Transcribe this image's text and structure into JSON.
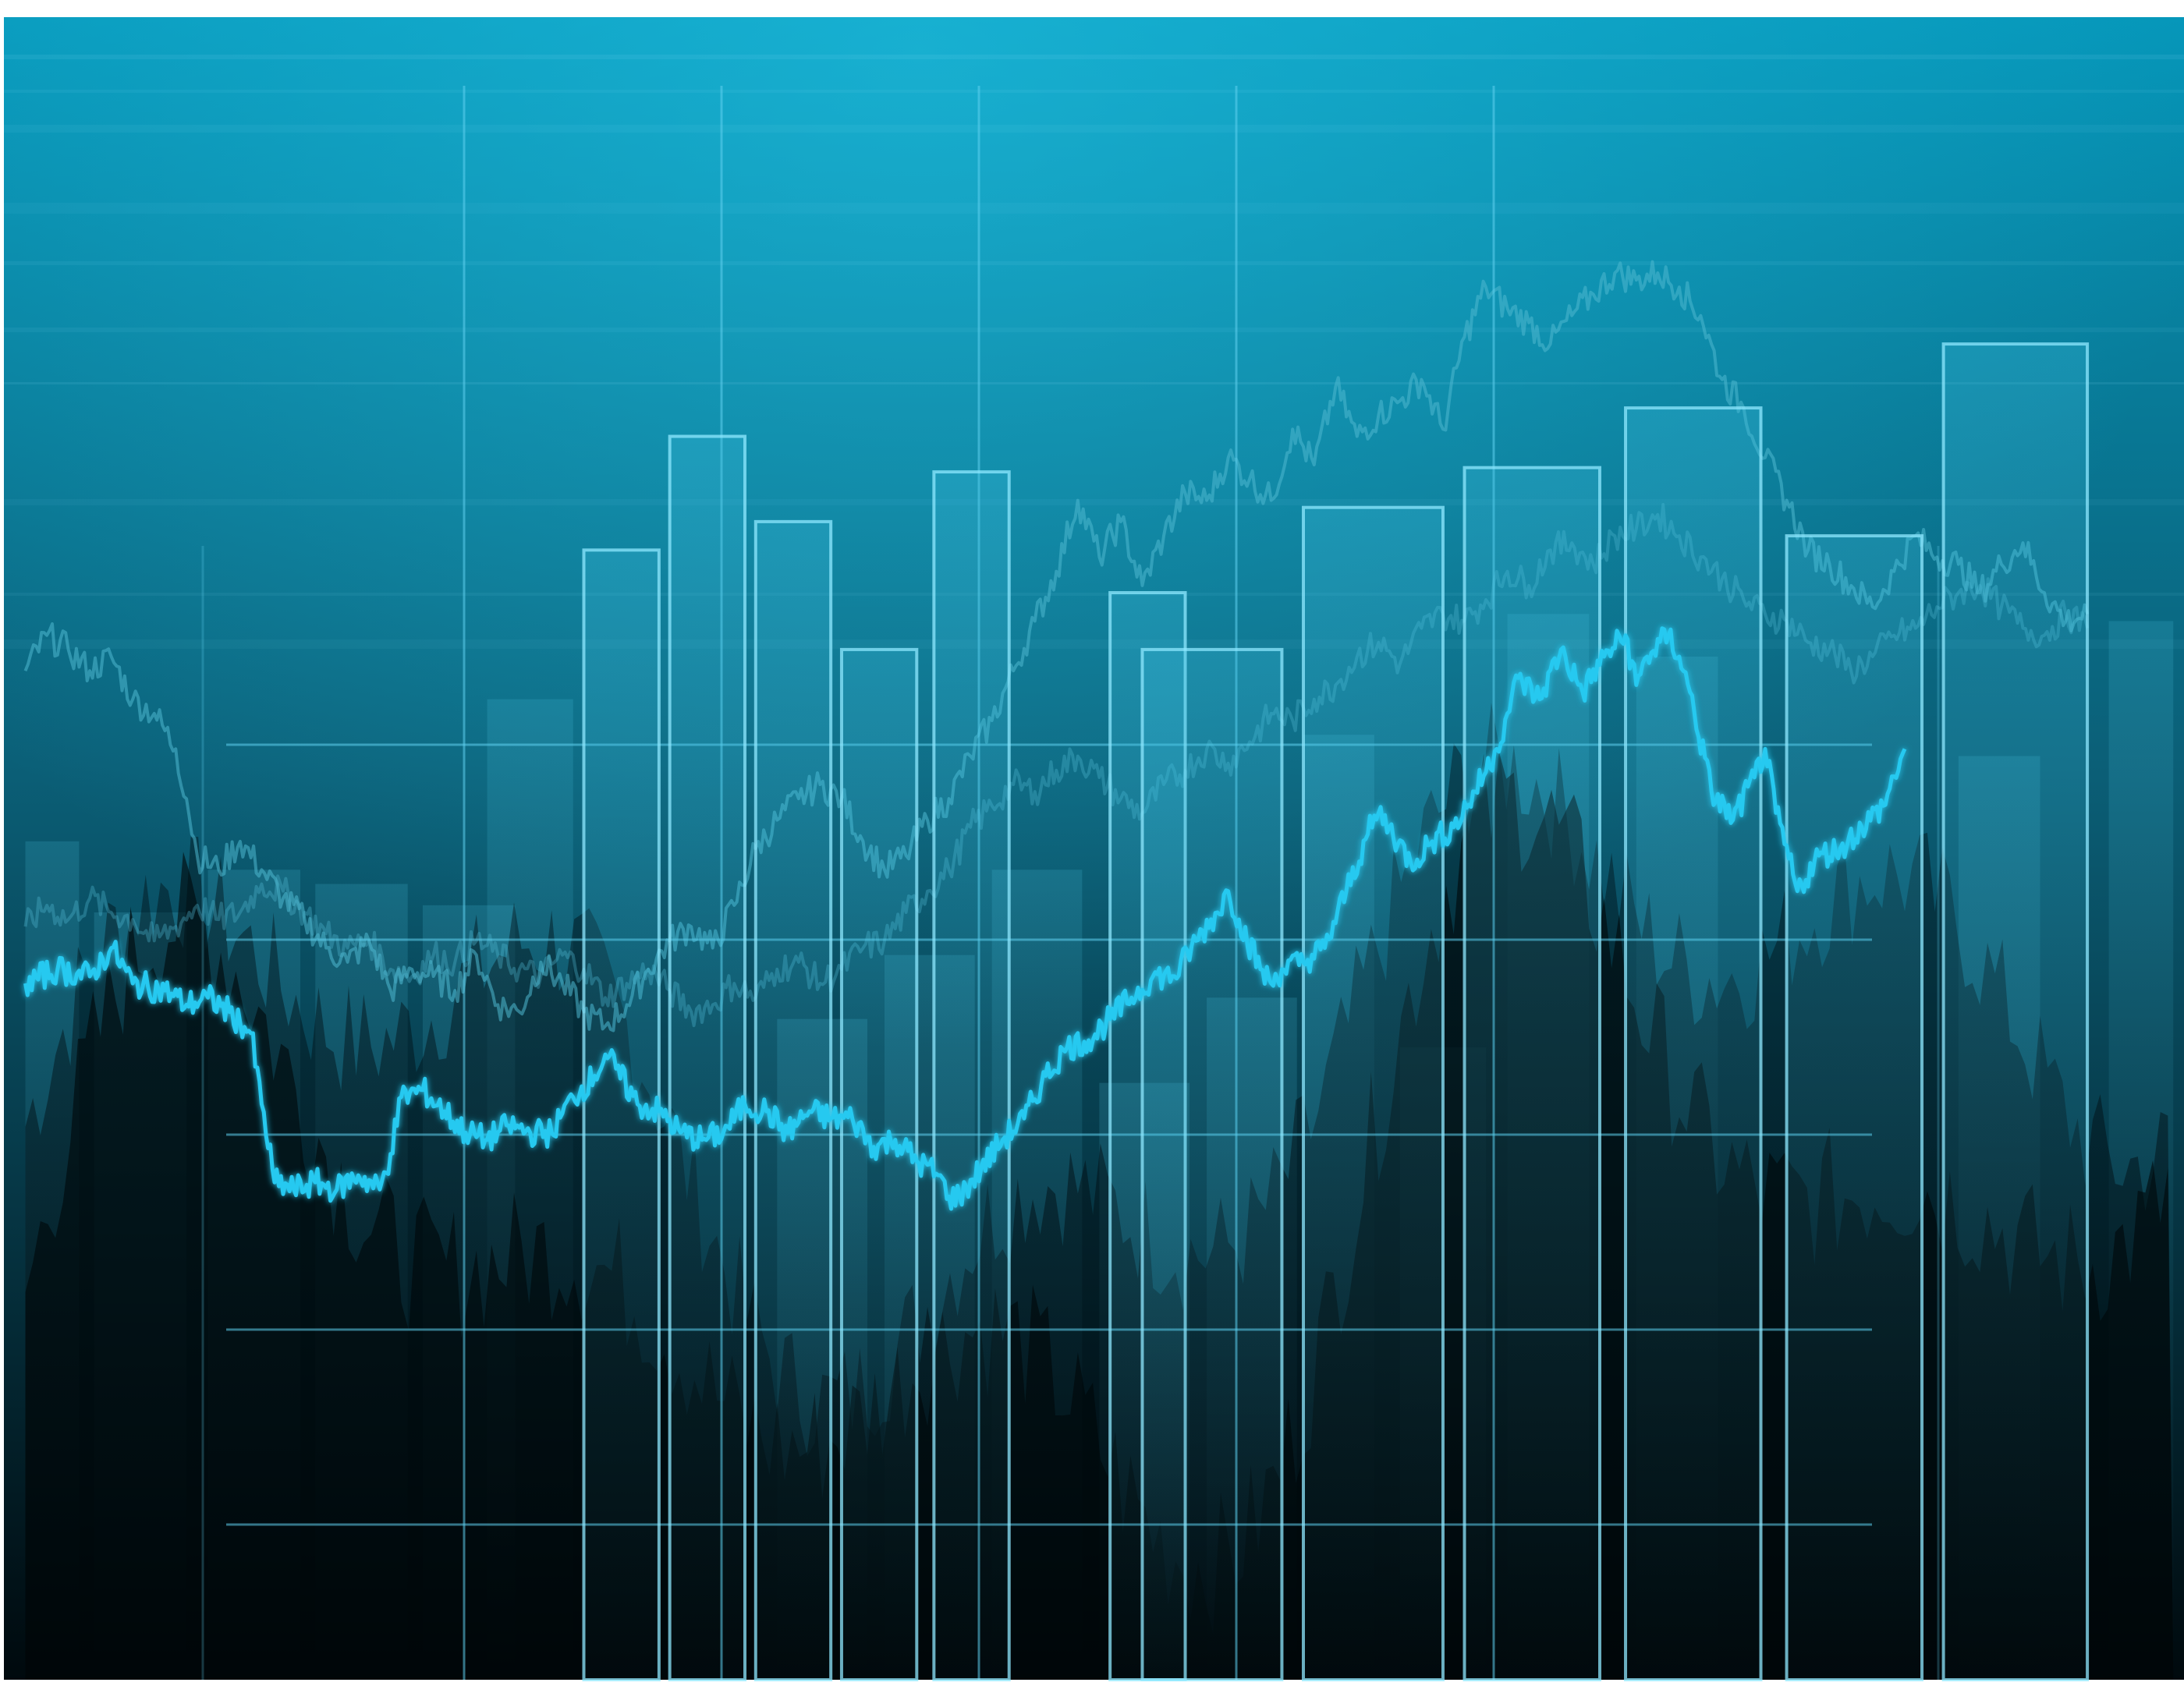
{
  "chart_data": {
    "type": "bar",
    "title": "",
    "xlabel": "",
    "ylabel": "",
    "x_range": [
      0,
      100
    ],
    "ylim": [
      0,
      100
    ],
    "grid": true,
    "legend": "none",
    "background": {
      "top": "#0596b9",
      "mid": "#0b5f77",
      "bottom": "#00090d"
    },
    "colors": {
      "bar_outline": "#8fe8ff",
      "line_bright": "#27c9f0",
      "line_faint": "#4fb8d0",
      "grid": "#5fd0ee"
    },
    "bars_outlined": [
      {
        "x0": 26,
        "x1": 29.5,
        "value": 62.5
      },
      {
        "x0": 30,
        "x1": 33.5,
        "value": 70.5
      },
      {
        "x0": 34,
        "x1": 37.5,
        "value": 64.5
      },
      {
        "x0": 38,
        "x1": 41.5,
        "value": 55.5
      },
      {
        "x0": 42.3,
        "x1": 45.8,
        "value": 68
      },
      {
        "x0": 50.5,
        "x1": 54,
        "value": 59.5
      },
      {
        "x0": 52,
        "x1": 58.5,
        "value": 55.5
      },
      {
        "x0": 59.5,
        "x1": 66,
        "value": 65.5
      },
      {
        "x0": 67,
        "x1": 73.3,
        "value": 68.3
      },
      {
        "x0": 74.5,
        "x1": 80.8,
        "value": 72.5
      },
      {
        "x0": 82,
        "x1": 88.3,
        "value": 63.5
      },
      {
        "x0": 89.3,
        "x1": 96,
        "value": 77
      }
    ],
    "bars_faint": [
      {
        "x0": 0,
        "x1": 2.5,
        "value": 42
      },
      {
        "x0": 3.2,
        "x1": 7.5,
        "value": 37
      },
      {
        "x0": 8.5,
        "x1": 12.8,
        "value": 40
      },
      {
        "x0": 13.5,
        "x1": 17.8,
        "value": 39
      },
      {
        "x0": 18.5,
        "x1": 22.8,
        "value": 37.5
      },
      {
        "x0": 21.5,
        "x1": 25.5,
        "value": 52
      },
      {
        "x0": 35,
        "x1": 39.2,
        "value": 29.5
      },
      {
        "x0": 40,
        "x1": 44.2,
        "value": 34
      },
      {
        "x0": 45,
        "x1": 49.2,
        "value": 40
      },
      {
        "x0": 50,
        "x1": 54.2,
        "value": 25
      },
      {
        "x0": 55,
        "x1": 59.2,
        "value": 31
      },
      {
        "x0": 59.5,
        "x1": 62.8,
        "value": 49.5
      },
      {
        "x0": 64,
        "x1": 68,
        "value": 27.5
      },
      {
        "x0": 69,
        "x1": 72.8,
        "value": 58
      },
      {
        "x0": 75,
        "x1": 78.8,
        "value": 55
      },
      {
        "x0": 90,
        "x1": 93.8,
        "value": 48
      },
      {
        "x0": 97,
        "x1": 100,
        "value": 57.5
      }
    ],
    "series": [
      {
        "style": "bright",
        "x": [
          0,
          1.5,
          3,
          4,
          5,
          6.5,
          7.5,
          8.5,
          9.5,
          10.5,
          11,
          11.6,
          12.5,
          13.5,
          14.5,
          15.5,
          16.5,
          17,
          17.5,
          18.5,
          19.5,
          20.5,
          21.5,
          22.5,
          23.5,
          24.5,
          25.5,
          26.5,
          27,
          27.5,
          28.5,
          29.5,
          30.5,
          31.5,
          32.5,
          33.5,
          34.5,
          35.5,
          36.5,
          37.5,
          38.5,
          39.5,
          40.5,
          41.5,
          42.5,
          43,
          43.5,
          44.5,
          45.5,
          46.5,
          47.5,
          48.5,
          49.5,
          50.5,
          51.5,
          52.5,
          53.5,
          54.5,
          55.5,
          56,
          56.5,
          57.5,
          58,
          58.5,
          59.5,
          60.5,
          61.5,
          62.5,
          63,
          63.5,
          64.5,
          65.5,
          66.5,
          67.5,
          68.5,
          69,
          69.5,
          70.5,
          71.5,
          72.5,
          73.5,
          74.5,
          75,
          75.5,
          76.5,
          77,
          77.5,
          78.5,
          79.5,
          80.5,
          81,
          81.5,
          82.5,
          83.5,
          84.5,
          85.5,
          86.5,
          87.5
        ],
        "values": [
          32,
          33,
          32.5,
          34.5,
          32,
          31.5,
          30.5,
          31,
          30,
          28.5,
          23.5,
          18,
          17.5,
          18,
          17.5,
          18.5,
          17.5,
          20,
          24,
          24.5,
          23,
          21.5,
          21,
          22,
          21.5,
          21.5,
          24,
          25.5,
          27,
          26,
          23.5,
          23,
          21.5,
          21,
          21.5,
          23.5,
          23,
          21.5,
          23,
          22.5,
          22.5,
          20.5,
          21,
          19.5,
          18.5,
          17,
          17,
          19,
          21,
          22.5,
          25.5,
          27.5,
          28,
          29.5,
          31,
          32.5,
          32.5,
          35,
          37,
          38.5,
          36.5,
          33,
          32,
          33,
          33.5,
          34.5,
          38.5,
          42.5,
          44,
          43,
          40.5,
          42,
          43,
          45.5,
          48.5,
          51,
          53.5,
          52,
          55.5,
          52.5,
          55,
          56.5,
          53,
          55,
          56.5,
          55,
          52.5,
          45.5,
          43.5,
          46.5,
          48.5,
          44,
          38.5,
          41,
          41.5,
          43,
          44.5,
          48.5
        ]
      },
      {
        "style": "faint",
        "x": [
          0,
          1,
          2,
          3,
          4,
          5,
          6,
          7,
          7.5,
          8,
          9,
          10,
          11,
          12,
          13,
          14,
          15,
          16,
          17,
          18,
          19,
          20,
          21,
          22,
          23,
          24,
          25,
          26,
          27,
          28,
          29,
          30,
          31,
          32,
          33,
          34,
          35,
          36,
          37,
          38,
          39,
          40,
          41,
          42,
          43,
          44,
          45,
          46,
          47,
          48,
          49,
          50,
          51,
          52,
          53,
          54,
          55,
          56,
          57,
          58,
          59,
          60,
          61,
          62,
          63,
          64,
          65,
          66,
          67,
          68,
          69,
          70,
          71,
          72,
          73,
          74,
          75,
          76,
          77,
          78,
          79,
          80,
          81,
          82,
          83,
          84,
          85,
          86,
          87,
          88,
          89,
          90,
          91,
          92,
          93,
          94,
          95,
          96
        ],
        "values": [
          54,
          56.5,
          55.5,
          54,
          55,
          52,
          51,
          48.5,
          45,
          41,
          40,
          42,
          40,
          38,
          36.5,
          34.5,
          33.5,
          35,
          31.5,
          33,
          32.5,
          31.5,
          34,
          30.5,
          30,
          33.5,
          32,
          30,
          29,
          30.5,
          33,
          35,
          36,
          34.5,
          37.5,
          41.5,
          43.5,
          45,
          46,
          45,
          42,
          40,
          41,
          43.5,
          45,
          48,
          50.5,
          54,
          57.5,
          61,
          66,
          62,
          64.5,
          60,
          63.5,
          66.5,
          66,
          69,
          67.5,
          66,
          71,
          68.5,
          74,
          70.5,
          72,
          73,
          74.5,
          71,
          77.5,
          81,
          79.5,
          78.5,
          77,
          79,
          80.5,
          82,
          81.5,
          82,
          81,
          79,
          74.5,
          72.5,
          69,
          66,
          62.5,
          61.5,
          60,
          58.5,
          61,
          63.5,
          62,
          61.5,
          59.5,
          61.5,
          63,
          59.5,
          57.5,
          58
        ]
      },
      {
        "style": "faint",
        "x": [
          0,
          1,
          2,
          3,
          4,
          5,
          6,
          7,
          8,
          9,
          10,
          11,
          12,
          13,
          14,
          15,
          16,
          17,
          18,
          19,
          20,
          21,
          22,
          23,
          24,
          25,
          26,
          27,
          28,
          29,
          30,
          31,
          32,
          33,
          34,
          35,
          36,
          37,
          38,
          39,
          40,
          41,
          42,
          43,
          44,
          45,
          46,
          47,
          48,
          49,
          50,
          51,
          52,
          53,
          54,
          55,
          56,
          57,
          58,
          59,
          60,
          61,
          62,
          63,
          64,
          65,
          66,
          67,
          68,
          69,
          70,
          71,
          72,
          73,
          74,
          75,
          76,
          77,
          78,
          79,
          80,
          81,
          82,
          83,
          84,
          85,
          86,
          87,
          88,
          89,
          90,
          91,
          92,
          93,
          94,
          95,
          96
        ],
        "values": [
          36,
          37.5,
          36.5,
          38,
          37,
          36.5,
          35,
          36,
          37.5,
          36.5,
          37,
          39,
          38.5,
          37,
          35.5,
          34.5,
          35,
          33,
          32.5,
          34,
          33.5,
          35,
          34,
          33,
          32.5,
          34,
          33,
          31,
          32,
          33,
          31.5,
          30,
          30.5,
          32,
          31,
          33,
          33.5,
          32,
          33,
          34.5,
          35,
          37,
          38.5,
          40,
          43,
          44.5,
          46,
          45.5,
          47,
          48,
          46.5,
          45,
          44,
          46,
          47,
          48.5,
          47.5,
          49,
          51,
          50.5,
          52,
          53,
          55,
          56,
          54.5,
          57,
          58,
          57.5,
          59,
          61,
          60,
          62.5,
          63,
          61.5,
          63.5,
          64,
          65,
          63.5,
          62,
          60.5,
          59,
          58,
          57.5,
          56,
          55.5,
          54,
          55,
          56.5,
          57,
          58.5,
          59.5,
          60,
          58.5,
          57,
          56.5,
          58,
          57
        ]
      }
    ]
  }
}
